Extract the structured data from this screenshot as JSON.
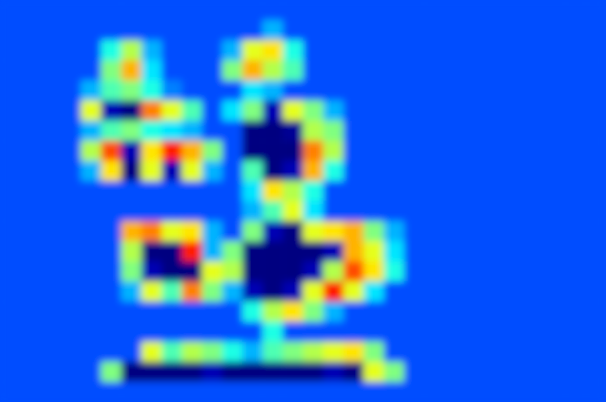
{
  "chart_data": {
    "type": "heatmap",
    "tick_labels": false,
    "xlim": [
      0,
      30
    ],
    "ylim": [
      0,
      20
    ],
    "color_range": [
      0,
      1
    ],
    "cells": [
      [
        0.2,
        0.2,
        0.2,
        0.2,
        0.2,
        0.2,
        0.2,
        0.2,
        0.2,
        0.2,
        0.2,
        0.2,
        0.2,
        0.2,
        0.2,
        0.2,
        0.2,
        0.2,
        0.2,
        0.2,
        0.2,
        0.2,
        0.2,
        0.2,
        0.2,
        0.2,
        0.2,
        0.2,
        0.2,
        0.2
      ],
      [
        0.2,
        0.2,
        0.2,
        0.2,
        0.2,
        0.2,
        0.2,
        0.2,
        0.2,
        0.2,
        0.2,
        0.2,
        0.2,
        0.3,
        0.2,
        0.2,
        0.2,
        0.2,
        0.2,
        0.2,
        0.2,
        0.2,
        0.2,
        0.2,
        0.2,
        0.2,
        0.2,
        0.2,
        0.2,
        0.2
      ],
      [
        0.2,
        0.2,
        0.2,
        0.2,
        0.2,
        0.4,
        0.55,
        0.3,
        0.2,
        0.2,
        0.2,
        0.3,
        0.6,
        0.65,
        0.4,
        0.2,
        0.2,
        0.2,
        0.2,
        0.2,
        0.2,
        0.2,
        0.2,
        0.2,
        0.2,
        0.2,
        0.2,
        0.2,
        0.2,
        0.2
      ],
      [
        0.2,
        0.2,
        0.2,
        0.2,
        0.2,
        0.5,
        0.7,
        0.35,
        0.2,
        0.2,
        0.2,
        0.5,
        0.7,
        0.55,
        0.45,
        0.2,
        0.2,
        0.2,
        0.2,
        0.2,
        0.2,
        0.2,
        0.2,
        0.2,
        0.2,
        0.2,
        0.2,
        0.2,
        0.2,
        0.2
      ],
      [
        0.2,
        0.2,
        0.2,
        0.2,
        0.3,
        0.45,
        0.5,
        0.4,
        0.25,
        0.2,
        0.2,
        0.2,
        0.35,
        0.3,
        0.2,
        0.2,
        0.2,
        0.2,
        0.2,
        0.2,
        0.2,
        0.2,
        0.2,
        0.2,
        0.2,
        0.2,
        0.2,
        0.2,
        0.2,
        0.2
      ],
      [
        0.2,
        0.2,
        0.2,
        0.2,
        0.6,
        0.05,
        0,
        0.75,
        0.6,
        0.45,
        0.2,
        0.35,
        0.5,
        0.05,
        0.6,
        0.5,
        0.3,
        0.2,
        0.2,
        0.2,
        0.2,
        0.2,
        0.2,
        0.2,
        0.2,
        0.2,
        0.2,
        0.2,
        0.2,
        0.2
      ],
      [
        0.2,
        0.2,
        0.2,
        0.2,
        0.3,
        0.45,
        0.5,
        0.4,
        0.35,
        0.3,
        0.2,
        0.2,
        0,
        0,
        0.02,
        0.55,
        0.5,
        0.2,
        0.2,
        0.2,
        0.2,
        0.2,
        0.2,
        0.2,
        0.2,
        0.2,
        0.2,
        0.2,
        0.2,
        0.2
      ],
      [
        0.2,
        0.2,
        0.2,
        0.2,
        0.55,
        0.8,
        0.05,
        0.65,
        0.85,
        0.7,
        0.5,
        0.2,
        0,
        0,
        0,
        0.75,
        0.55,
        0.2,
        0.2,
        0.2,
        0.2,
        0.2,
        0.2,
        0.2,
        0.2,
        0.2,
        0.2,
        0.2,
        0.2,
        0.2
      ],
      [
        0.2,
        0.2,
        0.2,
        0.2,
        0.3,
        0.65,
        0,
        0.6,
        0.05,
        0.6,
        0.3,
        0.2,
        0.45,
        0,
        0.05,
        0.7,
        0.4,
        0.2,
        0.2,
        0.2,
        0.2,
        0.2,
        0.2,
        0.2,
        0.2,
        0.2,
        0.2,
        0.2,
        0.2,
        0.2
      ],
      [
        0.2,
        0.2,
        0.2,
        0.2,
        0.2,
        0.2,
        0.2,
        0.2,
        0.2,
        0.2,
        0.2,
        0.2,
        0.35,
        0.65,
        0.55,
        0.4,
        0.2,
        0.2,
        0.2,
        0.2,
        0.2,
        0.2,
        0.2,
        0.2,
        0.2,
        0.2,
        0.2,
        0.2,
        0.2,
        0.2
      ],
      [
        0.2,
        0.2,
        0.2,
        0.2,
        0.2,
        0.2,
        0.2,
        0.2,
        0.2,
        0.2,
        0.2,
        0.2,
        0.3,
        0.45,
        0.6,
        0.35,
        0.2,
        0.2,
        0.2,
        0.2,
        0.2,
        0.2,
        0.2,
        0.2,
        0.2,
        0.2,
        0.2,
        0.2,
        0.2,
        0.2
      ],
      [
        0.2,
        0.2,
        0.2,
        0.2,
        0.2,
        0.2,
        0.7,
        0.75,
        0.6,
        0.65,
        0.3,
        0.2,
        0.5,
        0.05,
        0,
        0.6,
        0.65,
        0.7,
        0.5,
        0.3,
        0.2,
        0.2,
        0.2,
        0.2,
        0.2,
        0.2,
        0.2,
        0.2,
        0.2,
        0.2
      ],
      [
        0.2,
        0.2,
        0.2,
        0.2,
        0.2,
        0.2,
        0.55,
        0,
        0,
        0.85,
        0.3,
        0.5,
        0,
        0,
        0,
        0,
        0.05,
        0.7,
        0.6,
        0.35,
        0.2,
        0.2,
        0.2,
        0.2,
        0.2,
        0.2,
        0.2,
        0.2,
        0.2,
        0.2
      ],
      [
        0.2,
        0.2,
        0.2,
        0.2,
        0.2,
        0.2,
        0.5,
        0.05,
        0,
        0,
        0.6,
        0.55,
        0,
        0,
        0,
        0.05,
        0.55,
        0.8,
        0.65,
        0.4,
        0.2,
        0.2,
        0.2,
        0.2,
        0.2,
        0.2,
        0.2,
        0.2,
        0.2,
        0.2
      ],
      [
        0.2,
        0.2,
        0.2,
        0.2,
        0.2,
        0.2,
        0.3,
        0.6,
        0.45,
        0.75,
        0.5,
        0.3,
        0.05,
        0,
        0.05,
        0.6,
        0.85,
        0.6,
        0.35,
        0.2,
        0.2,
        0.2,
        0.2,
        0.2,
        0.2,
        0.2,
        0.2,
        0.2,
        0.2,
        0.2
      ],
      [
        0.2,
        0.2,
        0.2,
        0.2,
        0.2,
        0.2,
        0.2,
        0.2,
        0.2,
        0.2,
        0.2,
        0.2,
        0.4,
        0.55,
        0.65,
        0.5,
        0.3,
        0.2,
        0.2,
        0.2,
        0.2,
        0.2,
        0.2,
        0.2,
        0.2,
        0.2,
        0.2,
        0.2,
        0.2,
        0.2
      ],
      [
        0.2,
        0.2,
        0.2,
        0.2,
        0.2,
        0.2,
        0.2,
        0.2,
        0.2,
        0.2,
        0.2,
        0.2,
        0.2,
        0.4,
        0.2,
        0.2,
        0.2,
        0.2,
        0.2,
        0.2,
        0.2,
        0.2,
        0.2,
        0.2,
        0.2,
        0.2,
        0.2,
        0.2,
        0.2,
        0.2
      ],
      [
        0.2,
        0.2,
        0.2,
        0.2,
        0.2,
        0.2,
        0.2,
        0.6,
        0.45,
        0.55,
        0.5,
        0.4,
        0.3,
        0.45,
        0.5,
        0.55,
        0.6,
        0.65,
        0.5,
        0.2,
        0.2,
        0.2,
        0.2,
        0.2,
        0.2,
        0.2,
        0.2,
        0.2,
        0.2,
        0.2
      ],
      [
        0.2,
        0.2,
        0.2,
        0.2,
        0.2,
        0.5,
        0,
        0,
        0,
        0,
        0.05,
        0,
        0,
        0,
        0,
        0,
        0.05,
        0,
        0.6,
        0.5,
        0.2,
        0.2,
        0.2,
        0.2,
        0.2,
        0.2,
        0.2,
        0.2,
        0.2,
        0.2
      ],
      [
        0.2,
        0.2,
        0.2,
        0.2,
        0.2,
        0.2,
        0.2,
        0.2,
        0.2,
        0.2,
        0.2,
        0.2,
        0.2,
        0.2,
        0.2,
        0.2,
        0.2,
        0.2,
        0.2,
        0.2,
        0.2,
        0.2,
        0.2,
        0.2,
        0.2,
        0.2,
        0.2,
        0.2,
        0.2,
        0.2
      ]
    ]
  }
}
